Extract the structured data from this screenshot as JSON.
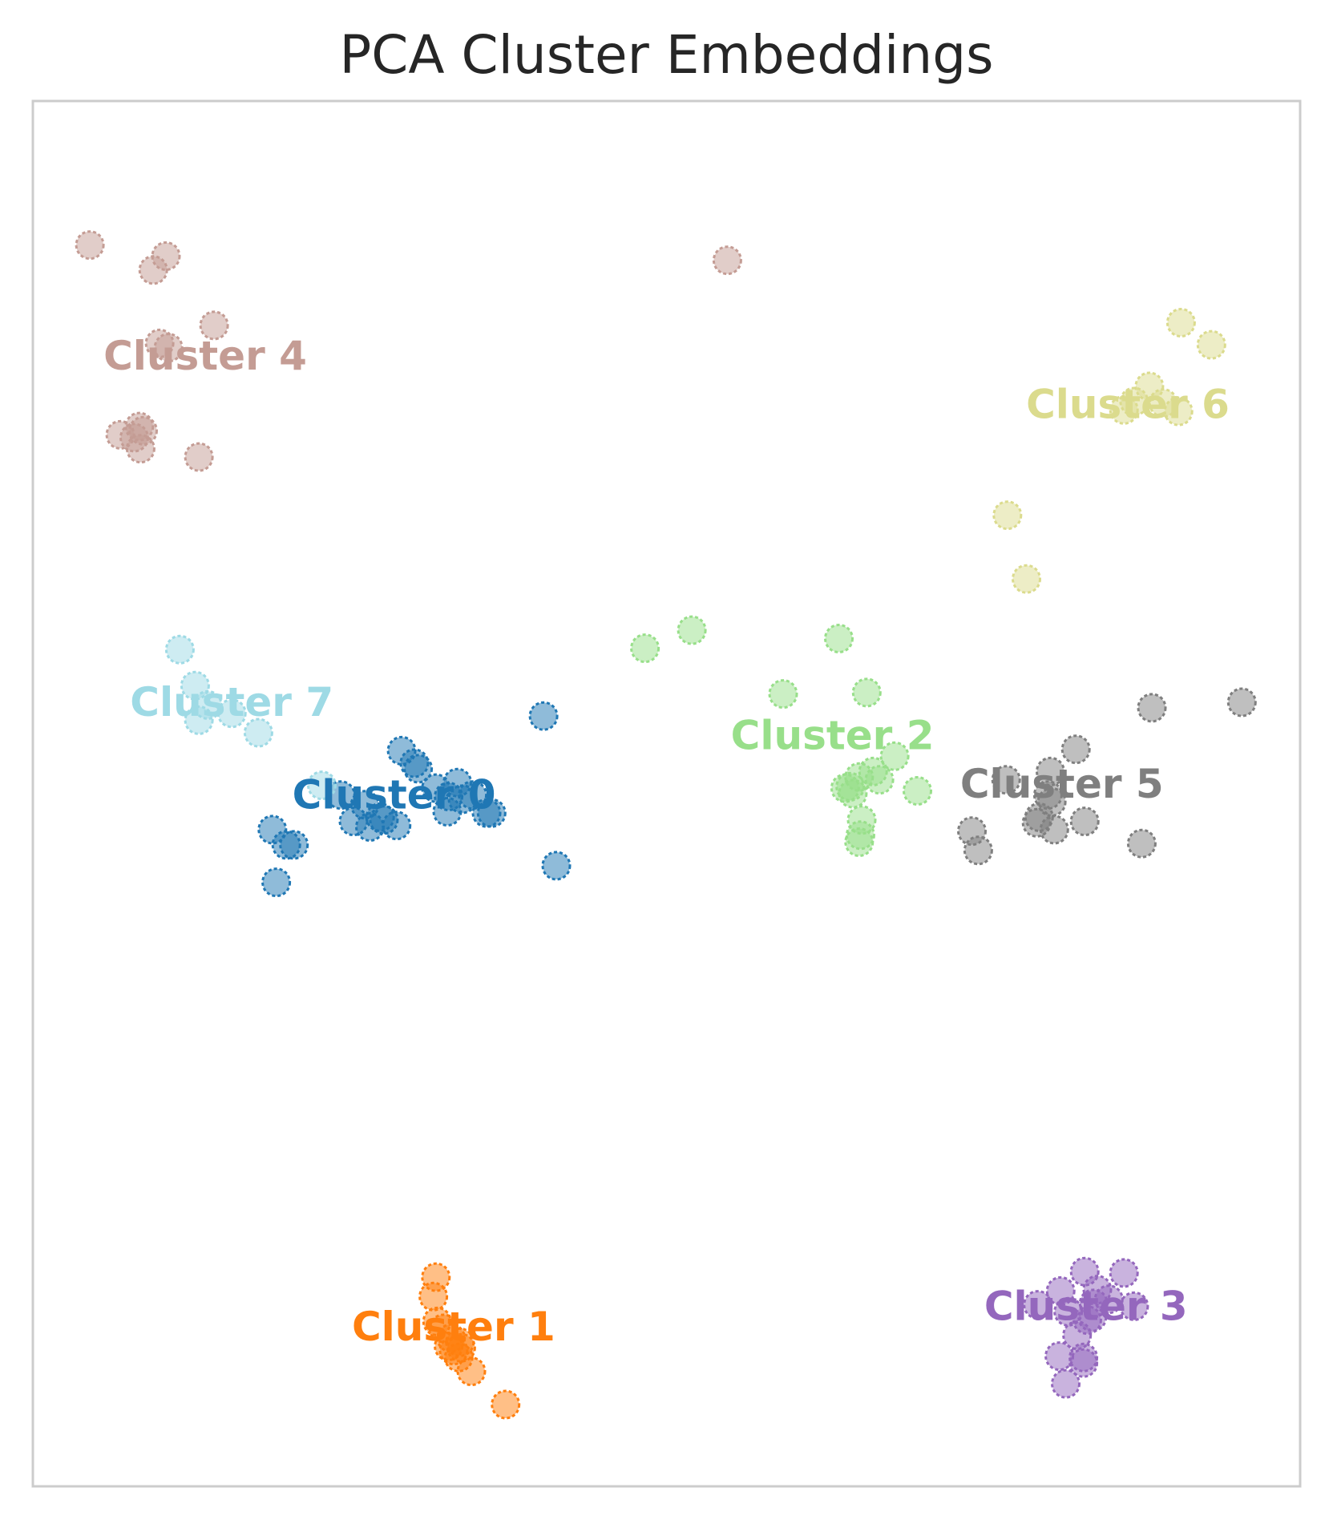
{
  "chart_data": {
    "type": "scatter",
    "title": "PCA Cluster Embeddings",
    "xlabel": "",
    "ylabel": "",
    "xlim": [
      0,
      100
    ],
    "ylim": [
      0,
      100
    ],
    "grid": false,
    "legend": "none",
    "series": [
      {
        "name": "Cluster 0",
        "color": "#1f77b4",
        "label_at": [
          28.5,
          49.7
        ],
        "points": [
          [
            40.3,
            55.6
          ],
          [
            29.1,
            53.1
          ],
          [
            30.1,
            52.2
          ],
          [
            30.4,
            51.8
          ],
          [
            31.8,
            50.4
          ],
          [
            32.8,
            49.8
          ],
          [
            33.9,
            49.6
          ],
          [
            34.7,
            49.9
          ],
          [
            32.7,
            48.7
          ],
          [
            26.2,
            49.2
          ],
          [
            35.8,
            48.6
          ],
          [
            27.4,
            48.3
          ],
          [
            28.7,
            47.7
          ],
          [
            25.3,
            48.0
          ],
          [
            26.6,
            47.6
          ],
          [
            27.7,
            48.1
          ],
          [
            24.3,
            49.9
          ],
          [
            33.5,
            50.8
          ],
          [
            36.2,
            48.6
          ],
          [
            41.3,
            44.8
          ],
          [
            18.9,
            47.4
          ],
          [
            20.6,
            46.3
          ],
          [
            20.0,
            46.3
          ],
          [
            19.2,
            43.6
          ]
        ]
      },
      {
        "name": "Cluster 1",
        "color": "#ff7f0e",
        "label_at": [
          33.2,
          11.3
        ],
        "points": [
          [
            31.8,
            15.1
          ],
          [
            31.6,
            13.7
          ],
          [
            31.9,
            11.9
          ],
          [
            32.4,
            11.4
          ],
          [
            33.0,
            10.7
          ],
          [
            33.7,
            10.4
          ],
          [
            33.8,
            10.0
          ],
          [
            33.2,
            9.8
          ],
          [
            33.6,
            9.3
          ],
          [
            34.6,
            8.3
          ],
          [
            37.3,
            5.9
          ],
          [
            32.8,
            10.1
          ]
        ]
      },
      {
        "name": "Cluster 2",
        "color": "#98df8a",
        "label_at": [
          63.1,
          54.0
        ],
        "points": [
          [
            48.3,
            60.5
          ],
          [
            52.0,
            61.8
          ],
          [
            63.6,
            61.2
          ],
          [
            59.2,
            57.2
          ],
          [
            65.8,
            57.3
          ],
          [
            68.0,
            52.7
          ],
          [
            66.3,
            51.6
          ],
          [
            65.2,
            51.2
          ],
          [
            66.8,
            51.0
          ],
          [
            64.1,
            50.4
          ],
          [
            64.7,
            50.0
          ],
          [
            69.8,
            50.2
          ],
          [
            65.4,
            48.1
          ],
          [
            65.3,
            47.0
          ],
          [
            65.2,
            46.5
          ],
          [
            64.5,
            50.5
          ]
        ]
      },
      {
        "name": "Cluster 3",
        "color": "#9467bd",
        "label_at": [
          83.1,
          12.8
        ],
        "points": [
          [
            83.0,
            15.5
          ],
          [
            86.1,
            15.4
          ],
          [
            84.0,
            14.2
          ],
          [
            81.1,
            14.1
          ],
          [
            79.3,
            13.1
          ],
          [
            83.7,
            13.2
          ],
          [
            84.9,
            13.5
          ],
          [
            86.9,
            13.0
          ],
          [
            81.7,
            12.6
          ],
          [
            83.6,
            12.2
          ],
          [
            82.4,
            10.9
          ],
          [
            81.0,
            9.4
          ],
          [
            82.9,
            9.3
          ],
          [
            82.9,
            8.9
          ],
          [
            81.5,
            7.4
          ],
          [
            83.2,
            12.0
          ]
        ]
      },
      {
        "name": "Cluster 4",
        "color": "#c49c94",
        "label_at": [
          13.6,
          81.4
        ],
        "points": [
          [
            4.5,
            89.6
          ],
          [
            10.5,
            88.8
          ],
          [
            9.5,
            87.8
          ],
          [
            14.3,
            83.8
          ],
          [
            10.7,
            82.2
          ],
          [
            10.0,
            82.5
          ],
          [
            8.4,
            76.5
          ],
          [
            6.9,
            75.9
          ],
          [
            8.7,
            76.2
          ],
          [
            8.0,
            75.7
          ],
          [
            8.5,
            74.9
          ],
          [
            13.1,
            74.3
          ],
          [
            54.8,
            88.5
          ]
        ]
      },
      {
        "name": "Cluster 5",
        "color": "#7f7f7f",
        "label_at": [
          81.2,
          50.5
        ],
        "points": [
          [
            88.3,
            56.2
          ],
          [
            95.4,
            56.6
          ],
          [
            82.3,
            53.2
          ],
          [
            80.3,
            51.6
          ],
          [
            76.8,
            51.0
          ],
          [
            80.1,
            49.9
          ],
          [
            80.4,
            49.4
          ],
          [
            79.4,
            48.3
          ],
          [
            79.2,
            47.9
          ],
          [
            83.0,
            48.0
          ],
          [
            80.6,
            47.4
          ],
          [
            74.1,
            47.3
          ],
          [
            74.6,
            45.9
          ],
          [
            87.5,
            46.4
          ]
        ]
      },
      {
        "name": "Cluster 6",
        "color": "#dbdb8d",
        "label_at": [
          86.4,
          77.9
        ],
        "points": [
          [
            90.6,
            84.0
          ],
          [
            93.0,
            82.4
          ],
          [
            88.1,
            79.4
          ],
          [
            86.1,
            77.7
          ],
          [
            86.9,
            78.3
          ],
          [
            89.2,
            78.2
          ],
          [
            90.4,
            77.6
          ],
          [
            76.9,
            70.1
          ],
          [
            78.4,
            65.5
          ]
        ]
      },
      {
        "name": "Cluster 7",
        "color": "#9edae5",
        "label_at": [
          15.7,
          56.4
        ],
        "points": [
          [
            11.6,
            60.4
          ],
          [
            12.8,
            57.8
          ],
          [
            13.8,
            56.4
          ],
          [
            15.7,
            55.8
          ],
          [
            13.1,
            55.3
          ],
          [
            17.8,
            54.4
          ],
          [
            22.8,
            50.6
          ]
        ]
      }
    ]
  }
}
